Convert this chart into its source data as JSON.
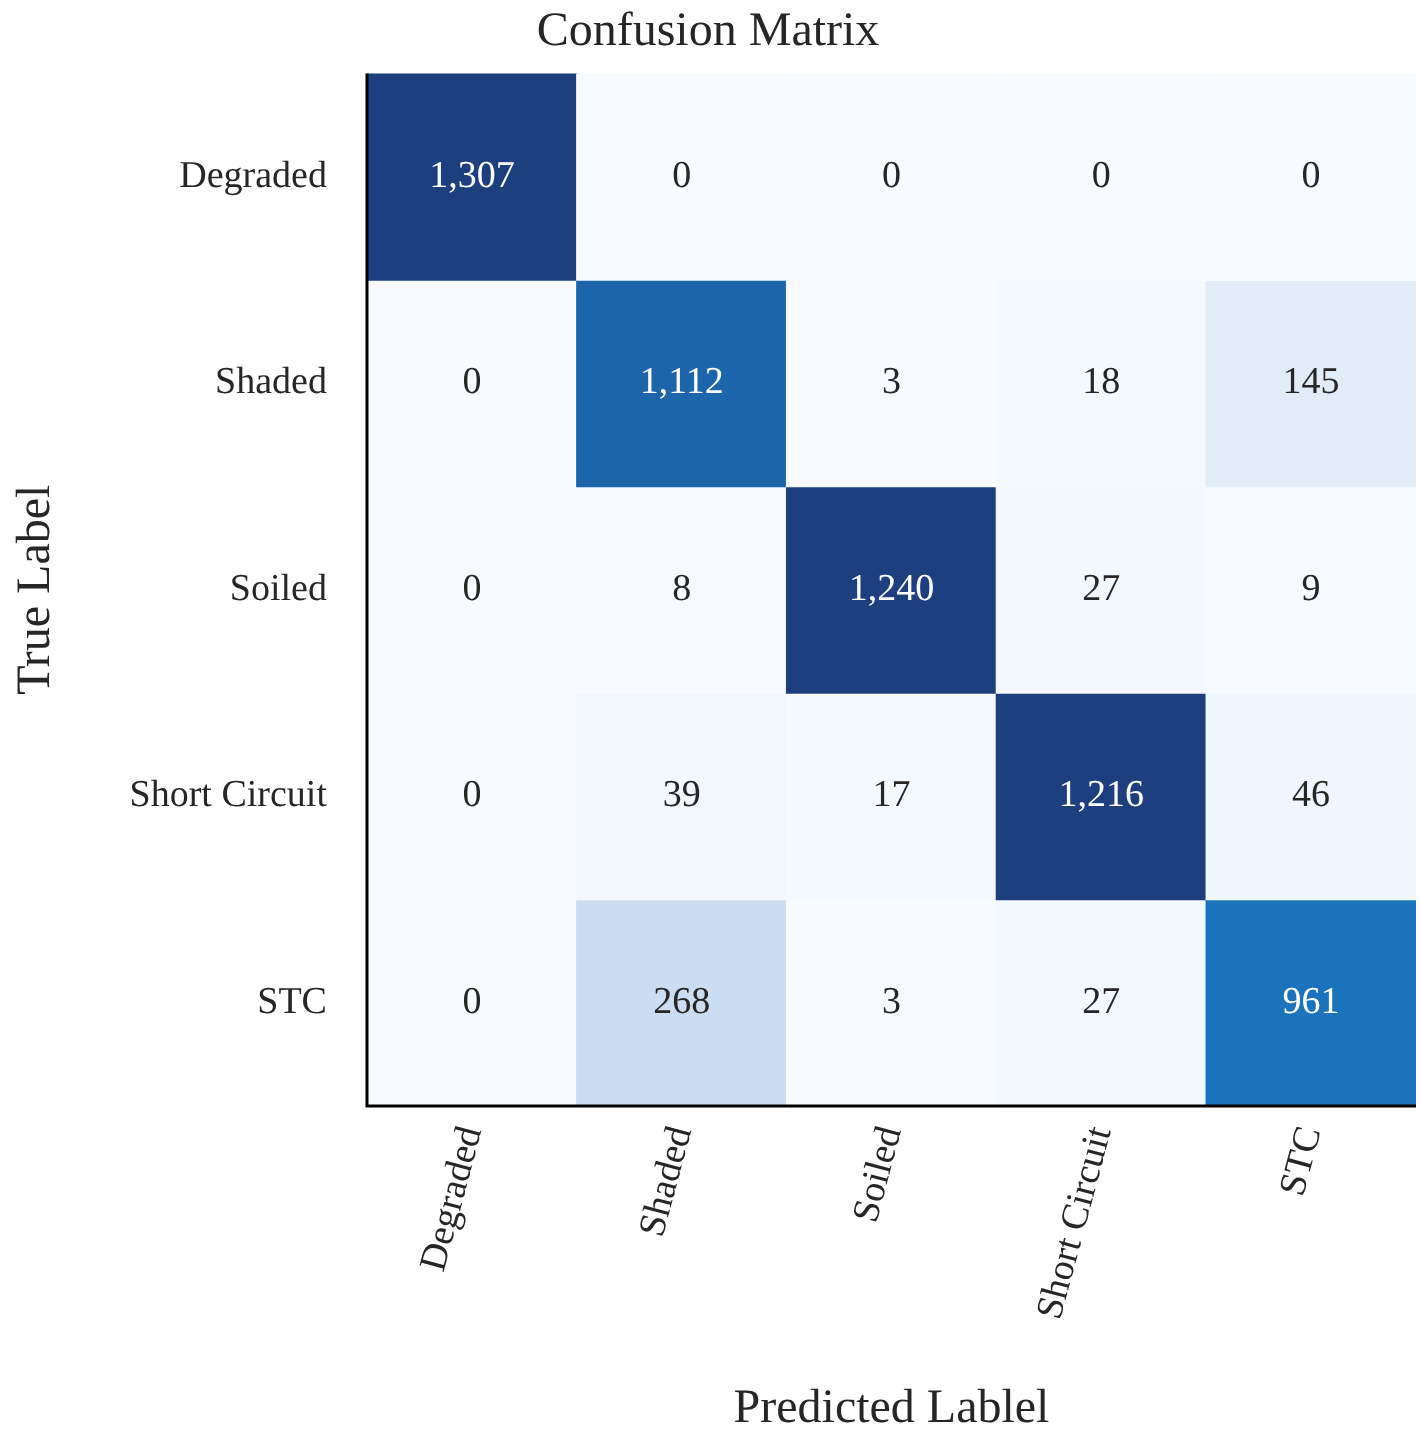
{
  "chart_data": {
    "type": "heatmap",
    "title": "Confusion Matrix",
    "xlabel": "Predicted Lablel",
    "ylabel": "True Label",
    "categories": [
      "Degraded",
      "Shaded",
      "Soiled",
      "Short Circuit",
      "STC"
    ],
    "y_categories": [
      "Degraded",
      "Shaded",
      "Soiled",
      "Short Circuit",
      "STC"
    ],
    "cells": [
      [
        1307,
        0,
        0,
        0,
        0
      ],
      [
        0,
        1112,
        3,
        18,
        145
      ],
      [
        0,
        8,
        1240,
        27,
        9
      ],
      [
        0,
        39,
        17,
        1216,
        46
      ],
      [
        0,
        268,
        3,
        27,
        961
      ]
    ],
    "cell_labels": [
      [
        "1,307",
        "0",
        "0",
        "0",
        "0"
      ],
      [
        "0",
        "1,112",
        "3",
        "18",
        "145"
      ],
      [
        "0",
        "8",
        "1,240",
        "27",
        "9"
      ],
      [
        "0",
        "39",
        "17",
        "1,216",
        "46"
      ],
      [
        "0",
        "268",
        "3",
        "27",
        "961"
      ]
    ]
  }
}
